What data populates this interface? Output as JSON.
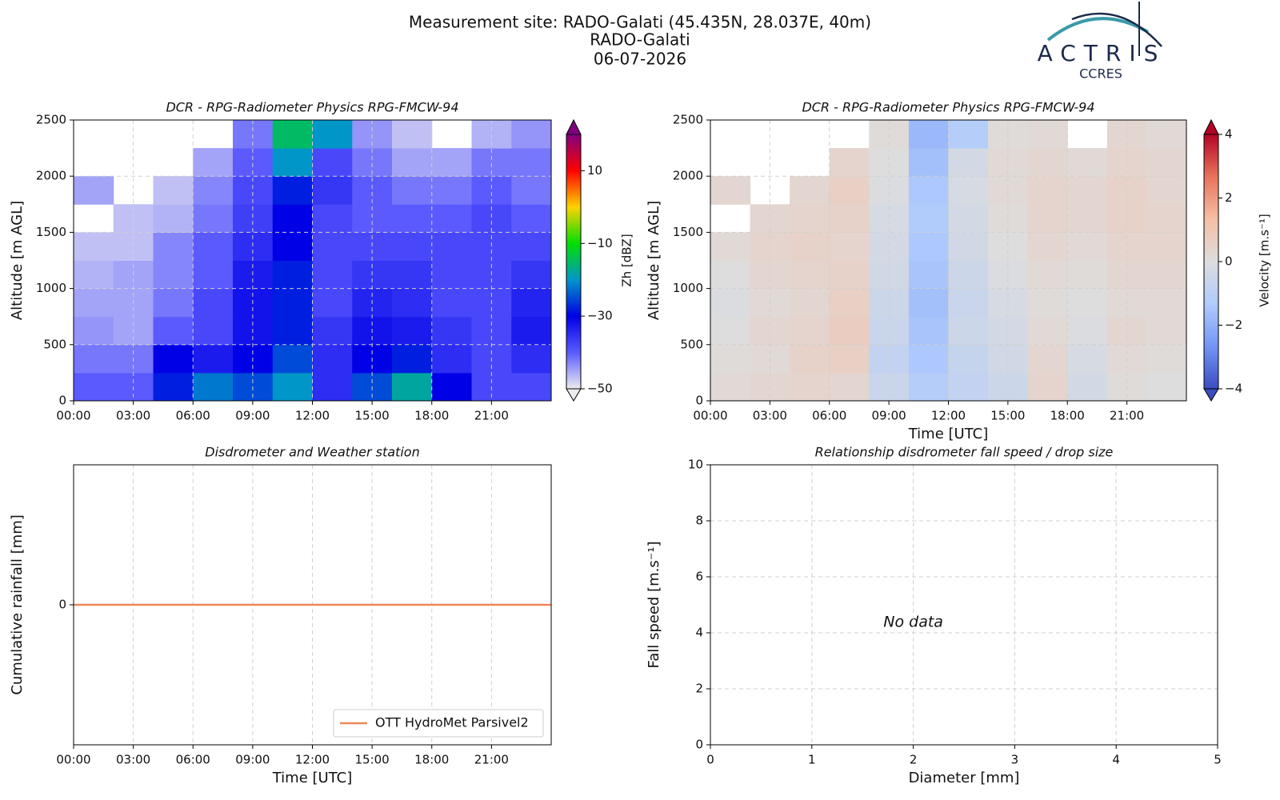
{
  "header": {
    "lines": [
      "Measurement site: RADO-Galati (45.435N, 28.037E, 40m)",
      "RADO-Galati",
      "06-07-2026"
    ],
    "logo": "ACTRIS",
    "logo_sub": "CCRES"
  },
  "chart_data": [
    {
      "type": "heatmap",
      "title": "DCR - RPG-Radiometer Physics RPG-FMCW-94",
      "ylabel": "Altitude [m AGL]",
      "xlim": [
        0,
        24
      ],
      "xticks": [
        {
          "value": 0,
          "label": "00:00"
        },
        {
          "value": 3,
          "label": "03:00"
        },
        {
          "value": 6,
          "label": "06:00"
        },
        {
          "value": 9,
          "label": "09:00"
        },
        {
          "value": 12,
          "label": "12:00"
        },
        {
          "value": 15,
          "label": "15:00"
        },
        {
          "value": 18,
          "label": "18:00"
        },
        {
          "value": 21,
          "label": "21:00"
        }
      ],
      "ylim": [
        0,
        2500
      ],
      "yticks": [
        0,
        500,
        1000,
        1500,
        2000,
        2500
      ],
      "grid": true,
      "xbins": [
        0,
        2,
        4,
        6,
        8,
        10,
        12,
        14,
        16,
        18,
        20,
        22,
        24
      ],
      "ybins": [
        0,
        250,
        500,
        750,
        1000,
        1250,
        1500,
        1750,
        2000,
        2250,
        2500
      ],
      "z": [
        [
          -40,
          -40,
          -28,
          -22,
          -25,
          -20,
          -35,
          -25,
          -18,
          -30,
          -38,
          -38
        ],
        [
          -42,
          -42,
          -30,
          -33,
          -30,
          -25,
          -35,
          -30,
          -28,
          -35,
          -38,
          -35
        ],
        [
          -44,
          -45,
          -40,
          -38,
          -32,
          -28,
          -36,
          -32,
          -33,
          -36,
          -38,
          -33
        ],
        [
          -45,
          -45,
          -42,
          -38,
          -32,
          -28,
          -38,
          -34,
          -35,
          -38,
          -38,
          -34
        ],
        [
          -46,
          -45,
          -43,
          -40,
          -33,
          -28,
          -38,
          -36,
          -36,
          -38,
          -38,
          -36
        ],
        [
          -47,
          -47,
          -43,
          -40,
          -35,
          -30,
          -38,
          -38,
          -38,
          -38,
          -38,
          -38
        ],
        [
          null,
          -47,
          -46,
          -42,
          -37,
          -30,
          -38,
          -40,
          -40,
          -40,
          -38,
          -40
        ],
        [
          -45,
          null,
          -47,
          -43,
          -38,
          -28,
          -36,
          -40,
          -42,
          -42,
          -40,
          -42
        ],
        [
          null,
          null,
          null,
          -45,
          -40,
          -20,
          -38,
          -42,
          -45,
          -45,
          -42,
          -42
        ],
        [
          null,
          null,
          null,
          null,
          -42,
          -15,
          -20,
          -44,
          -47,
          null,
          -46,
          -44
        ]
      ],
      "colorbar": {
        "label": "Zh [dBZ]",
        "lim": [
          -50,
          20
        ],
        "ticks": [
          {
            "value": -50,
            "label": "−50"
          },
          {
            "value": -30,
            "label": "−30"
          },
          {
            "value": -10,
            "label": "−10"
          },
          10
        ],
        "colors": [
          "#ececf0",
          "#5a5aff",
          "#0000e6",
          "#0096c8",
          "#00e000",
          "#ffd200",
          "#ff0000",
          "#800080"
        ]
      }
    },
    {
      "type": "heatmap",
      "title": "DCR - RPG-Radiometer Physics RPG-FMCW-94",
      "ylabel": "Altitude [m AGL]",
      "xlabel": "Time [UTC]",
      "xlim": [
        0,
        24
      ],
      "xticks": [
        {
          "value": 0,
          "label": "00:00"
        },
        {
          "value": 3,
          "label": "03:00"
        },
        {
          "value": 6,
          "label": "06:00"
        },
        {
          "value": 9,
          "label": "09:00"
        },
        {
          "value": 12,
          "label": "12:00"
        },
        {
          "value": 15,
          "label": "15:00"
        },
        {
          "value": 18,
          "label": "18:00"
        },
        {
          "value": 21,
          "label": "21:00"
        }
      ],
      "ylim": [
        0,
        2500
      ],
      "yticks": [
        0,
        500,
        1000,
        1500,
        2000,
        2500
      ],
      "grid": true,
      "xbins": [
        0,
        2,
        4,
        6,
        8,
        10,
        12,
        14,
        16,
        18,
        20,
        22,
        24
      ],
      "ybins": [
        0,
        250,
        500,
        750,
        1000,
        1250,
        1500,
        1750,
        2000,
        2250,
        2500
      ],
      "z": [
        [
          0.2,
          0.3,
          0.4,
          0.3,
          -0.6,
          -1.2,
          -0.8,
          -0.5,
          0.4,
          -0.3,
          0.1,
          0
        ],
        [
          0.1,
          0.2,
          0.5,
          0.6,
          -0.8,
          -1.4,
          -0.7,
          -0.4,
          0.3,
          -0.2,
          0.2,
          0.1
        ],
        [
          0,
          0.3,
          0.4,
          0.7,
          -0.6,
          -1.5,
          -0.5,
          -0.3,
          0.2,
          -0.1,
          0.3,
          0.2
        ],
        [
          -0.1,
          0.2,
          0.3,
          0.6,
          -0.5,
          -1.6,
          -0.6,
          -0.2,
          0.1,
          0,
          0.2,
          0.2
        ],
        [
          0,
          0.3,
          0.4,
          0.5,
          -0.4,
          -1.5,
          -0.5,
          -0.1,
          0.2,
          0.1,
          0.3,
          0.3
        ],
        [
          0.2,
          0.4,
          0.5,
          0.4,
          -0.3,
          -1.4,
          -0.4,
          0,
          0.3,
          0.2,
          0.4,
          0.4
        ],
        [
          null,
          0.3,
          0.4,
          0.5,
          -0.2,
          -1.3,
          -0.3,
          0.1,
          0.4,
          0.3,
          0.5,
          0.4
        ],
        [
          0.3,
          null,
          0.3,
          0.6,
          -0.1,
          -1.4,
          -0.2,
          0.2,
          0.4,
          0.3,
          0.5,
          0.3
        ],
        [
          null,
          null,
          null,
          0.4,
          0,
          -1.6,
          -0.3,
          0.2,
          0.3,
          0.2,
          0.4,
          0.3
        ],
        [
          null,
          null,
          null,
          null,
          0.1,
          -1.8,
          -1.2,
          0.1,
          0.2,
          null,
          0.3,
          0.2
        ]
      ],
      "colorbar": {
        "label": "Velocity [m.s⁻¹]",
        "lim": [
          -4,
          4
        ],
        "ticks": [
          {
            "value": -4,
            "label": "−4"
          },
          {
            "value": -2,
            "label": "−2"
          },
          0,
          2,
          4
        ],
        "colors": [
          "#3b4cc0",
          "#7396f5",
          "#b0cbfc",
          "#dddddd",
          "#f6bfa6",
          "#e7745b",
          "#b40426"
        ]
      }
    },
    {
      "type": "line",
      "title": "Disdrometer and Weather station",
      "ylabel": "Cumulative rainfall [mm]",
      "xlabel": "Time [UTC]",
      "xlim": [
        0,
        24
      ],
      "xticks": [
        {
          "value": 0,
          "label": "00:00"
        },
        {
          "value": 3,
          "label": "03:00"
        },
        {
          "value": 6,
          "label": "06:00"
        },
        {
          "value": 9,
          "label": "09:00"
        },
        {
          "value": 12,
          "label": "12:00"
        },
        {
          "value": 15,
          "label": "15:00"
        },
        {
          "value": 18,
          "label": "18:00"
        },
        {
          "value": 21,
          "label": "21:00"
        }
      ],
      "ylim": [
        -0.055,
        0.055
      ],
      "yticks": [
        0
      ],
      "grid": true,
      "legend": "lower right",
      "x": [
        0,
        6,
        12,
        18,
        24
      ],
      "series": [
        {
          "name": "OTT HydroMet Parsivel2",
          "color": "#f0875a",
          "values": [
            0,
            0,
            0,
            0,
            0
          ]
        }
      ]
    },
    {
      "type": "scatter",
      "title": "Relationship disdrometer fall speed / drop size",
      "ylabel": "Fall speed [m.s⁻¹]",
      "xlabel": "Diameter [mm]",
      "xlim": [
        0,
        5
      ],
      "xticks": [
        0,
        1,
        2,
        3,
        4,
        5
      ],
      "ylim": [
        0,
        10
      ],
      "yticks": [
        0,
        2,
        4,
        6,
        8,
        10
      ],
      "grid": true,
      "annotation": "No data"
    }
  ]
}
